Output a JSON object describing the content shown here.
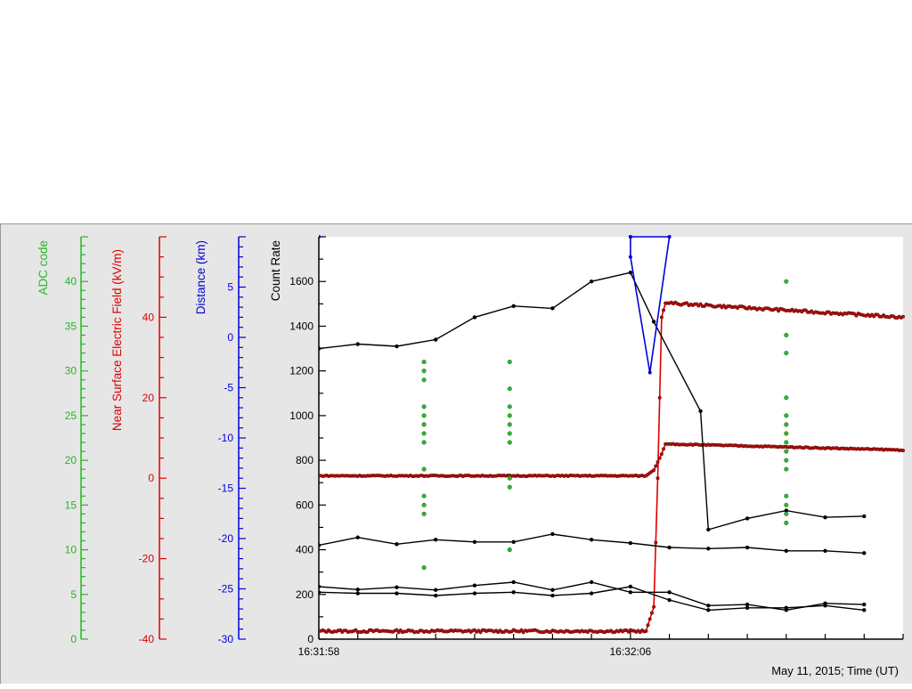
{
  "colors": {
    "adc": "#22b822",
    "efield": "#dd0000",
    "distance": "#0000dd",
    "count": "#000000",
    "efield_marker": "#b01010",
    "adc_marker": "#33bb33",
    "panel_bg": "#e6e6e6"
  },
  "chart_data": {
    "type": "scatter",
    "caption": "May 11, 2015; Time (UT)",
    "x_tick_labels": [
      "16:31:58",
      "16:32:06"
    ],
    "x_range_seconds": [
      0,
      15
    ],
    "axes": {
      "adc": {
        "label": "ADC code",
        "range": [
          0,
          45
        ],
        "ticks": [
          0,
          5,
          10,
          15,
          20,
          25,
          30,
          35,
          40
        ]
      },
      "efield": {
        "label": "Near Surface Electric Field (kV/m)",
        "range": [
          -40,
          60
        ],
        "ticks": [
          -40,
          -20,
          0,
          20,
          40
        ]
      },
      "distance": {
        "label": "Distance (km)",
        "range": [
          -30,
          10
        ],
        "ticks": [
          -30,
          -25,
          -20,
          -15,
          -10,
          -5,
          0,
          5
        ]
      },
      "count": {
        "label": "Count Rate",
        "range": [
          0,
          1800
        ],
        "ticks": [
          0,
          200,
          400,
          600,
          800,
          1000,
          1200,
          1400,
          1600
        ]
      }
    },
    "count_rate_series": [
      {
        "x": [
          0,
          1,
          2,
          3,
          4,
          5,
          6,
          7,
          8,
          8.6,
          9.8,
          10,
          11,
          12,
          13,
          14
        ],
        "y": [
          1300,
          1320,
          1310,
          1340,
          1440,
          1490,
          1480,
          1600,
          1640,
          1420,
          1020,
          490,
          540,
          575,
          545,
          550
        ]
      },
      {
        "x": [
          0,
          1,
          2,
          3,
          4,
          5,
          6,
          7,
          8,
          9,
          10,
          11,
          12,
          13,
          14
        ],
        "y": [
          420,
          455,
          425,
          445,
          435,
          435,
          470,
          445,
          430,
          410,
          405,
          410,
          395,
          395,
          385
        ]
      },
      {
        "x": [
          0,
          1,
          2,
          3,
          4,
          5,
          6,
          7,
          8,
          9,
          10,
          11,
          12,
          13,
          14
        ],
        "y": [
          235,
          222,
          232,
          220,
          240,
          255,
          220,
          255,
          210,
          210,
          150,
          155,
          130,
          160,
          155
        ]
      },
      {
        "x": [
          0,
          1,
          2,
          3,
          4,
          5,
          6,
          7,
          8,
          9,
          10,
          11,
          12,
          13,
          14
        ],
        "y": [
          210,
          205,
          205,
          195,
          205,
          210,
          195,
          205,
          235,
          175,
          130,
          140,
          140,
          150,
          130
        ]
      }
    ],
    "efield_series": [
      {
        "x": [
          0,
          8.4,
          8.6,
          8.7,
          8.8,
          8.9,
          9.0,
          15
        ],
        "y": [
          -38.0,
          -38.0,
          -32.0,
          0.0,
          40.0,
          43.5,
          43.5,
          40.0
        ]
      },
      {
        "x": [
          0,
          8.4,
          8.6,
          8.7,
          8.8,
          8.9,
          9.0,
          15
        ],
        "y": [
          0.6,
          0.6,
          2.0,
          4.0,
          6.0,
          8.5,
          8.5,
          7.0
        ]
      }
    ],
    "distance_series": {
      "x": [
        8,
        9,
        8.5,
        8,
        8
      ],
      "y": [
        10,
        10,
        -3.5,
        8,
        10
      ]
    },
    "adc_points": [
      {
        "x": 2.7,
        "y": [
          8,
          14,
          15,
          16,
          19,
          22,
          23,
          24,
          25,
          26,
          29,
          30,
          31
        ]
      },
      {
        "x": 4.9,
        "y": [
          10,
          17,
          18,
          22,
          23,
          24,
          25,
          26,
          28,
          31
        ]
      },
      {
        "x": 12.0,
        "y": [
          13,
          14,
          15,
          16,
          19,
          20,
          21,
          22,
          23,
          24,
          25,
          27,
          32,
          34,
          40
        ]
      }
    ]
  }
}
